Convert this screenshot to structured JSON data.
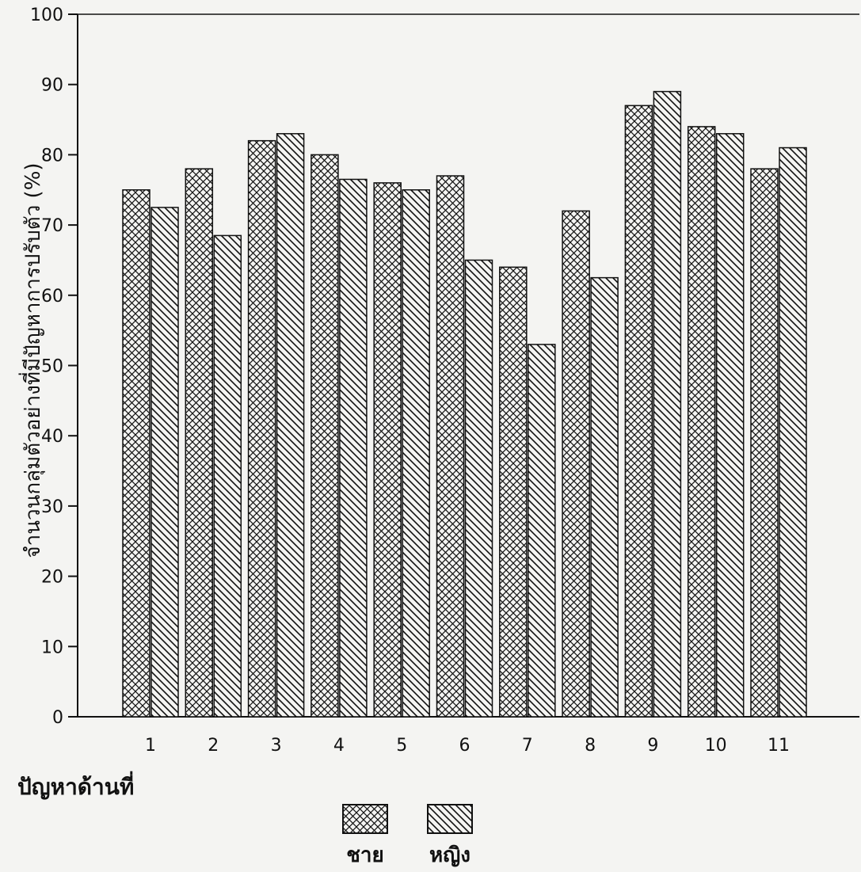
{
  "chart_data": {
    "type": "bar",
    "categories": [
      "1",
      "2",
      "3",
      "4",
      "5",
      "6",
      "7",
      "8",
      "9",
      "10",
      "11"
    ],
    "series": [
      {
        "name": "ชาย",
        "pattern": "crosshatch",
        "values": [
          75,
          78,
          82,
          80,
          76,
          77,
          64,
          72,
          87,
          84,
          78
        ]
      },
      {
        "name": "หญิง",
        "pattern": "diagonal",
        "values": [
          72.5,
          68.5,
          83,
          76.5,
          75,
          65,
          53,
          62.5,
          89,
          83,
          81
        ]
      }
    ],
    "title": "",
    "xlabel": "ปัญหาด้านที่",
    "ylabel": "จำนวนกลุ่มตัวอย่างที่มีปัญหาการปรับตัว (%)",
    "ylim": [
      0,
      100
    ],
    "yticks": [
      "0",
      "10",
      "20",
      "30",
      "40",
      "50",
      "60",
      "70",
      "80",
      "90",
      "100"
    ],
    "grid": false,
    "legend_position": "bottom-center",
    "colors": {
      "ink": "#111111",
      "paper": "#f4f4f2"
    }
  }
}
